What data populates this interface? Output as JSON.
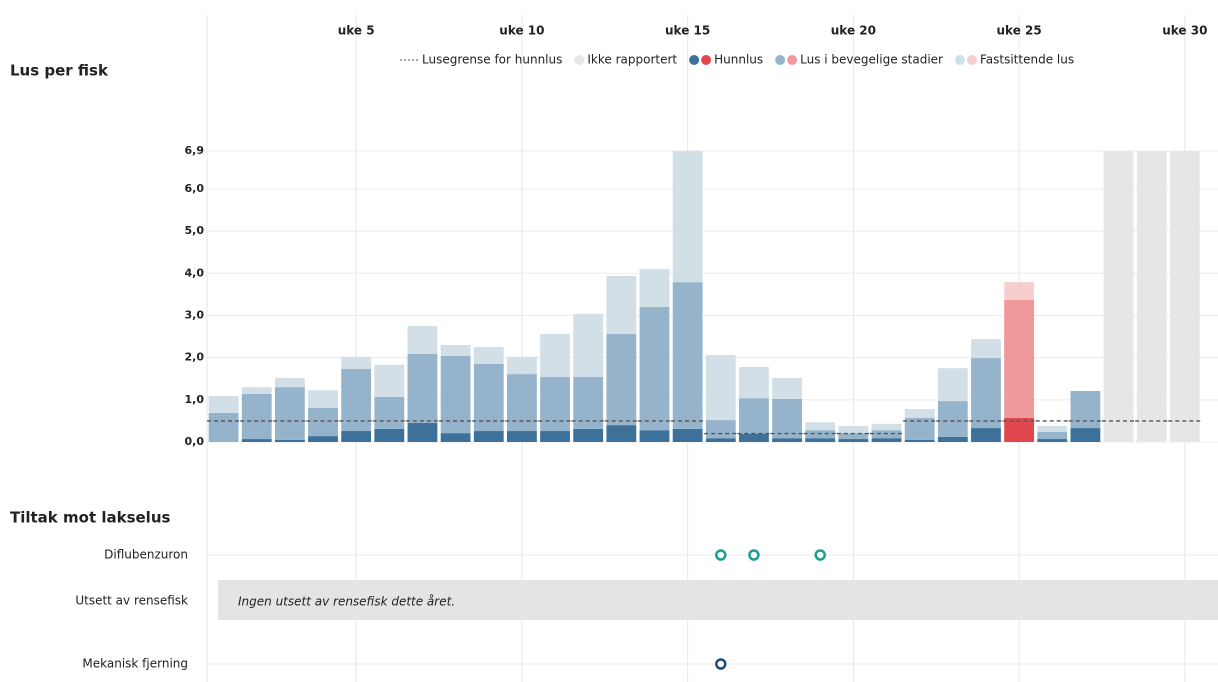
{
  "header": {
    "title": "Lus per fisk"
  },
  "chart_data": {
    "type": "bar",
    "stacked": true,
    "x": [
      1,
      2,
      3,
      4,
      5,
      6,
      7,
      8,
      9,
      10,
      11,
      12,
      13,
      14,
      15,
      16,
      17,
      18,
      19,
      20,
      21,
      22,
      23,
      24,
      25,
      26,
      27,
      28,
      29,
      30
    ],
    "xlim": [
      0.5,
      31.0
    ],
    "xticks": [
      {
        "value": 5,
        "label": "uke 5"
      },
      {
        "value": 10,
        "label": "uke 10"
      },
      {
        "value": 15,
        "label": "uke 15"
      },
      {
        "value": 20,
        "label": "uke 20"
      },
      {
        "value": 25,
        "label": "uke 25"
      },
      {
        "value": 30,
        "label": "uke 30"
      }
    ],
    "ylim": [
      0,
      6.9
    ],
    "yticks": [
      {
        "value": 0,
        "label": "0,0"
      },
      {
        "value": 1,
        "label": "1,0"
      },
      {
        "value": 2,
        "label": "2,0"
      },
      {
        "value": 3,
        "label": "3,0"
      },
      {
        "value": 4,
        "label": "4,0"
      },
      {
        "value": 5,
        "label": "5,0"
      },
      {
        "value": 6,
        "label": "6,0"
      },
      {
        "value": 6.9,
        "label": "6,9"
      }
    ],
    "grid": true,
    "alert_x": [
      25
    ],
    "threshold": {
      "name": "Lusegrense for hunnlus",
      "color": "#555555",
      "values": [
        0.5,
        0.5,
        0.5,
        0.5,
        0.5,
        0.5,
        0.5,
        0.5,
        0.5,
        0.5,
        0.5,
        0.5,
        0.5,
        0.5,
        0.5,
        0.2,
        0.2,
        0.2,
        0.2,
        0.2,
        0.2,
        0.5,
        0.5,
        0.5,
        0.5,
        0.5,
        0.5,
        0.5,
        0.5,
        0.5
      ]
    },
    "series": [
      {
        "name": "Hunnlus",
        "color": "#3d719a",
        "alert_color": "#e0474c",
        "values": [
          0,
          0.07,
          0.05,
          0.14,
          0.26,
          0.31,
          0.45,
          0.21,
          0.26,
          0.26,
          0.26,
          0.31,
          0.4,
          0.28,
          0.31,
          0.09,
          0.19,
          0.09,
          0.09,
          0.07,
          0.09,
          0.05,
          0.12,
          0.33,
          0.57,
          0.07,
          0.33,
          null,
          null,
          null
        ]
      },
      {
        "name": "Lus i bevegelige stadier",
        "color": "#95b4cb",
        "alert_color": "#f0999b",
        "values": [
          0.69,
          1.07,
          1.25,
          0.67,
          1.47,
          0.76,
          1.64,
          1.83,
          1.59,
          1.35,
          1.28,
          1.23,
          2.16,
          2.92,
          3.48,
          0.43,
          0.85,
          0.93,
          0.19,
          0.14,
          0.19,
          0.52,
          0.85,
          1.66,
          2.8,
          0.17,
          0.88,
          null,
          null,
          null
        ]
      },
      {
        "name": "Fastsittende lus",
        "color": "#d2dfe7",
        "alert_color": "#f6cece",
        "values": [
          0.4,
          0.16,
          0.22,
          0.42,
          0.29,
          0.76,
          0.66,
          0.26,
          0.4,
          0.41,
          1.02,
          1.5,
          1.38,
          0.9,
          3.11,
          1.54,
          0.74,
          0.5,
          0.19,
          0.17,
          0.15,
          0.21,
          0.78,
          0.45,
          0.42,
          0.14,
          0,
          null,
          null,
          null
        ]
      },
      {
        "name": "Ikke rapportert",
        "color": "#e6e6e6",
        "values": [
          null,
          null,
          null,
          null,
          null,
          null,
          null,
          null,
          null,
          null,
          null,
          null,
          null,
          null,
          null,
          null,
          null,
          null,
          null,
          null,
          null,
          null,
          null,
          null,
          null,
          null,
          null,
          6.9,
          6.9,
          6.9
        ]
      }
    ]
  },
  "treatments": {
    "title": "Tiltak mot lakselus",
    "rows": [
      {
        "name": "Diflubenzuron",
        "x": [
          16,
          17,
          19
        ],
        "color": "#1a9e97"
      },
      {
        "name": "Utsett av rensefisk",
        "note": "Ingen utsett av rensefisk dette året."
      },
      {
        "name": "Mekanisk fjerning",
        "x": [
          16
        ],
        "color": "#1d4f7a"
      }
    ]
  }
}
